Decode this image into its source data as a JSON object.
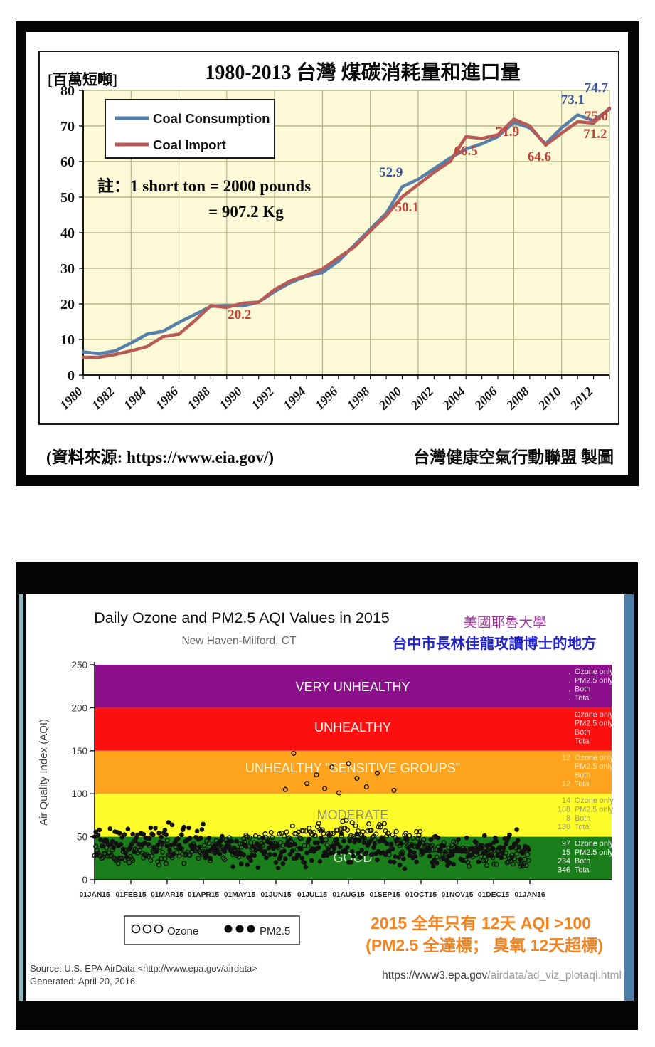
{
  "page": {
    "background": "#ffffff"
  },
  "chart_data": [
    {
      "type": "line",
      "title": "1980-2013 台灣 煤碳消耗量和進口量",
      "unit_label": "[百萬短噸]",
      "note_line1": "註：1 short ton = 2000 pounds",
      "note_line2": "= 907.2 Kg",
      "source_left": "(資料來源: https://www.eia.gov/)",
      "source_right": "台灣健康空氣行動聯盟 製圖",
      "x": [
        1980,
        1981,
        1982,
        1983,
        1984,
        1985,
        1986,
        1987,
        1988,
        1989,
        1990,
        1991,
        1992,
        1993,
        1994,
        1995,
        1996,
        1997,
        1998,
        1999,
        2000,
        2001,
        2002,
        2003,
        2004,
        2005,
        2006,
        2007,
        2008,
        2009,
        2010,
        2011,
        2012,
        2013
      ],
      "xticks": [
        1980,
        1982,
        1984,
        1986,
        1988,
        1990,
        1992,
        1994,
        1996,
        1998,
        2000,
        2002,
        2004,
        2006,
        2008,
        2010,
        2012
      ],
      "ylim": [
        0,
        80
      ],
      "ytick_step": 10,
      "grid": true,
      "plot_bg": "#FCFAD6",
      "grid_color": "#A9A97E",
      "vgrid_years": [
        1983,
        1986,
        1989,
        1992,
        1995,
        1998,
        2001,
        2004,
        2007,
        2010
      ],
      "series": [
        {
          "name": "Coal Consumption",
          "color": "#5580AE",
          "values": [
            6.5,
            6.0,
            6.8,
            9.0,
            11.5,
            12.3,
            14.8,
            17.0,
            19.3,
            19.5,
            19.4,
            20.5,
            23.5,
            26.0,
            27.8,
            28.8,
            32.0,
            36.5,
            41.0,
            45.5,
            52.9,
            55.0,
            58.0,
            61.0,
            63.5,
            65.0,
            67.0,
            71.0,
            69.5,
            65.0,
            69.5,
            73.1,
            71.5,
            74.7
          ]
        },
        {
          "name": "Coal Import",
          "color": "#B85B57",
          "values": [
            5.0,
            5.0,
            5.8,
            6.8,
            8.0,
            10.8,
            11.5,
            15.3,
            19.5,
            19.0,
            20.2,
            20.5,
            24.0,
            26.5,
            28.0,
            29.8,
            33.0,
            36.0,
            40.5,
            44.8,
            50.1,
            53.5,
            57.0,
            60.0,
            67.0,
            66.5,
            67.5,
            71.9,
            70.0,
            64.6,
            68.0,
            71.2,
            70.8,
            75.0
          ]
        }
      ],
      "annotation_colors": {
        "blue": "#3A55A4",
        "red": "#C24238"
      },
      "annotations": [
        {
          "text": "20.2",
          "year": 1989.8,
          "value": 15.8,
          "color": "blue_or_red_red",
          "tone": "red"
        },
        {
          "text": "52.9",
          "year": 1999.3,
          "value": 55.8,
          "tone": "blue"
        },
        {
          "text": "50.1",
          "year": 2000.3,
          "value": 46.0,
          "tone": "red"
        },
        {
          "text": "66.5",
          "year": 2004.0,
          "value": 61.8,
          "tone": "red"
        },
        {
          "text": "71.9",
          "year": 2006.6,
          "value": 67.2,
          "tone": "red"
        },
        {
          "text": "64.6",
          "year": 2008.6,
          "value": 60.2,
          "tone": "red"
        },
        {
          "text": "73.1",
          "year": 2010.7,
          "value": 76.2,
          "tone": "blue"
        },
        {
          "text": "74.7",
          "year": 2013.0,
          "value": 79.6,
          "tone": "blue",
          "anchor": "end"
        },
        {
          "text": "75.0",
          "year": 2013.0,
          "value": 71.6,
          "tone": "red",
          "anchor": "end"
        },
        {
          "text": "71.2",
          "year": 2012.1,
          "value": 66.6,
          "tone": "red"
        }
      ]
    },
    {
      "type": "scatter",
      "title": "Daily Ozone and PM2.5 AQI Values in 2015",
      "subtitle": "New Haven-Milford, CT",
      "ylabel": "Air Quality Index (AQI)",
      "ylim": [
        0,
        250
      ],
      "yticks": [
        0,
        50,
        100,
        150,
        200,
        250
      ],
      "xticks": [
        "01JAN15",
        "01FEB15",
        "01MAR15",
        "01APR15",
        "01MAY15",
        "01JUN15",
        "01JUL15",
        "01AUG15",
        "01SEP15",
        "01OCT15",
        "01NOV15",
        "01DEC15",
        "01JAN16"
      ],
      "yale_note": {
        "text": "美國耶魯大學",
        "color": "#A23BA2"
      },
      "taichung_note": {
        "text": "台中市長林佳龍攻讀博士的地方",
        "color": "#2424CC"
      },
      "stat_labels": [
        "Ozone only",
        "PM2.5 only",
        "Both",
        "Total"
      ],
      "bands": [
        {
          "label": "VERY UNHEALTHY",
          "range": [
            200,
            250
          ],
          "color": "#8C0F8C",
          "label_color": "#FFFFFF",
          "stats_color": "#F0DFF0",
          "stats": [
            ".",
            ".",
            ".",
            "."
          ]
        },
        {
          "label": "UNHEALTHY",
          "range": [
            150,
            200
          ],
          "color": "#FB0F0F",
          "label_color": "#FFFFFF",
          "stats_color": "#FFDCDC",
          "stats": [
            "",
            "",
            "",
            ""
          ]
        },
        {
          "label": "UNHEALTHY \"SENSITIVE GROUPS\"",
          "range": [
            100,
            150
          ],
          "color": "#FFA41C",
          "label_color": "#FDF6D8",
          "stats_color": "#FFE6B8",
          "stats": [
            "12",
            "",
            "",
            "12"
          ]
        },
        {
          "label": "MODERATE",
          "range": [
            50,
            100
          ],
          "color": "#FCFC28",
          "label_color": "#8F8F63",
          "stats_color": "#9C9C6E",
          "stats": [
            "14",
            "108",
            "8",
            "130"
          ]
        },
        {
          "label": "GOOD",
          "range": [
            0,
            50
          ],
          "color": "#1A7F1A",
          "label_color": "#E4F2DF",
          "stats_color": "#F2F2F2",
          "stats": [
            "97",
            "15",
            "234",
            "346"
          ]
        }
      ],
      "legend": {
        "ozone": "Ozone",
        "pm25": "PM2.5"
      },
      "marker_styles": {
        "ozone": "open-circle",
        "pm25": "filled-circle"
      },
      "scatter_params": {
        "seed": 20150420,
        "days": 365,
        "ozone_monthly_mean": [
          28,
          30,
          33,
          36,
          42,
          50,
          55,
          52,
          45,
          35,
          28,
          26
        ],
        "ozone_spread": 16,
        "ozone_clamp": [
          10,
          97
        ],
        "pm25_monthly_mean": [
          46,
          48,
          46,
          33,
          30,
          32,
          37,
          38,
          33,
          31,
          36,
          40
        ],
        "pm25_spread": 22,
        "pm25_clamp": [
          6,
          92
        ]
      },
      "ozone_exceedances": [
        [
          160,
          105
        ],
        [
          167,
          147
        ],
        [
          178,
          112
        ],
        [
          186,
          122
        ],
        [
          193,
          106
        ],
        [
          199,
          131
        ],
        [
          205,
          101
        ],
        [
          213,
          135
        ],
        [
          220,
          118
        ],
        [
          228,
          108
        ],
        [
          237,
          124
        ],
        [
          251,
          104
        ]
      ],
      "orange_note": {
        "line1": "2015 全年只有 12天  AQI >100",
        "line2": "(PM2.5 全達標；  臭氧 12天超標)",
        "color": "#F5831F"
      },
      "source_line1": "Source: U.S. EPA AirData <http://www.epa.gov/airdata>",
      "source_line2": "Generated: April 20, 2016",
      "url": {
        "dark_part": "https://www3.epa.gov",
        "light_part": "/airdata/ad_viz_plotaqi.html"
      }
    }
  ]
}
